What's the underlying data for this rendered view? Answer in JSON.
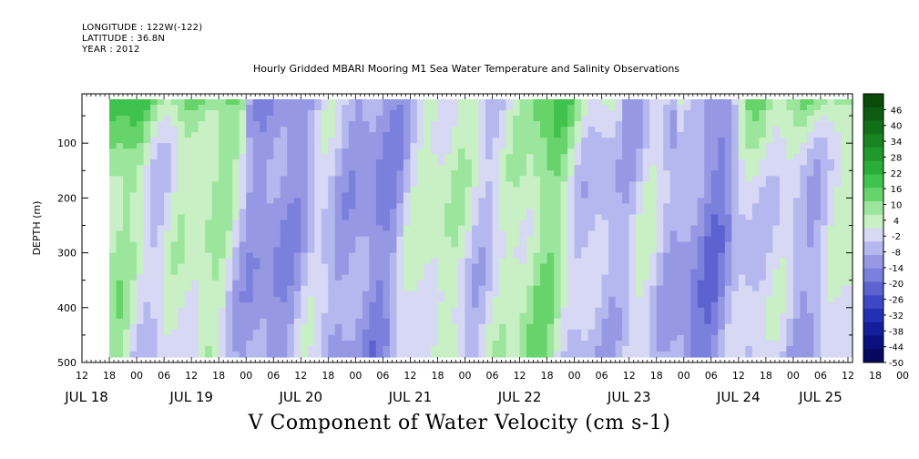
{
  "header": {
    "longitude": "LONGITUDE : 122W(-122)",
    "latitude": "LATITUDE : 36.8N",
    "year": "YEAR : 2012"
  },
  "title": "Hourly Gridded MBARI Mooring M1 Sea Water Temperature and Salinity Observations",
  "variable_label": "V Component of Water Velocity (cm s-1)",
  "chart_data": {
    "type": "heatmap",
    "title": "Hourly Gridded MBARI Mooring M1 Sea Water Temperature and Salinity Observations",
    "xlabel": "",
    "ylabel": "DEPTH (m)",
    "colorbar_label": "V Component of Water Velocity (cm s-1)",
    "x_range": [
      "JUL 18 12:00",
      "JUL 25 13:00"
    ],
    "x_hour_ticks": [
      "12",
      "18",
      "00",
      "06",
      "12",
      "18",
      "00",
      "06",
      "12",
      "18",
      "00",
      "06",
      "12",
      "18",
      "00",
      "06",
      "12",
      "18",
      "00",
      "06",
      "12",
      "18",
      "00",
      "06",
      "12",
      "18",
      "00",
      "06",
      "12",
      "18",
      "00",
      "06",
      "12"
    ],
    "x_day_labels": [
      "JUL 18",
      "JUL 19",
      "JUL 20",
      "JUL 21",
      "JUL 22",
      "JUL 23",
      "JUL 24",
      "JUL 25"
    ],
    "y_ticks": [
      100,
      200,
      300,
      400,
      500
    ],
    "ylim": [
      500,
      10
    ],
    "y_inverted": true,
    "data_extent_depth": [
      20,
      490
    ],
    "colorbar": {
      "levels": [
        46,
        40,
        34,
        28,
        22,
        16,
        10,
        4,
        -2,
        -8,
        -14,
        -20,
        -26,
        -32,
        -38,
        -44,
        -50
      ],
      "range": [
        -50,
        52
      ],
      "colors": [
        "#0a4a0a",
        "#0d5c12",
        "#127019",
        "#188522",
        "#1f992c",
        "#2aad38",
        "#40c24e",
        "#66d46a",
        "#9be69c",
        "#c8f0c4",
        "#d6d8f4",
        "#b4b8ee",
        "#9698e4",
        "#7a80dc",
        "#5c62d0",
        "#3e48c4",
        "#2430b4",
        "#141e9a",
        "#0a1080",
        "#060860"
      ]
    },
    "pattern": "alternating green (northward, +2 to +45 cm/s) and blue-violet (southward, -2 to -30 cm/s) vertical bands through the water column; strongest positive values near surface on JUL 18-19 and JUL 24-25"
  }
}
